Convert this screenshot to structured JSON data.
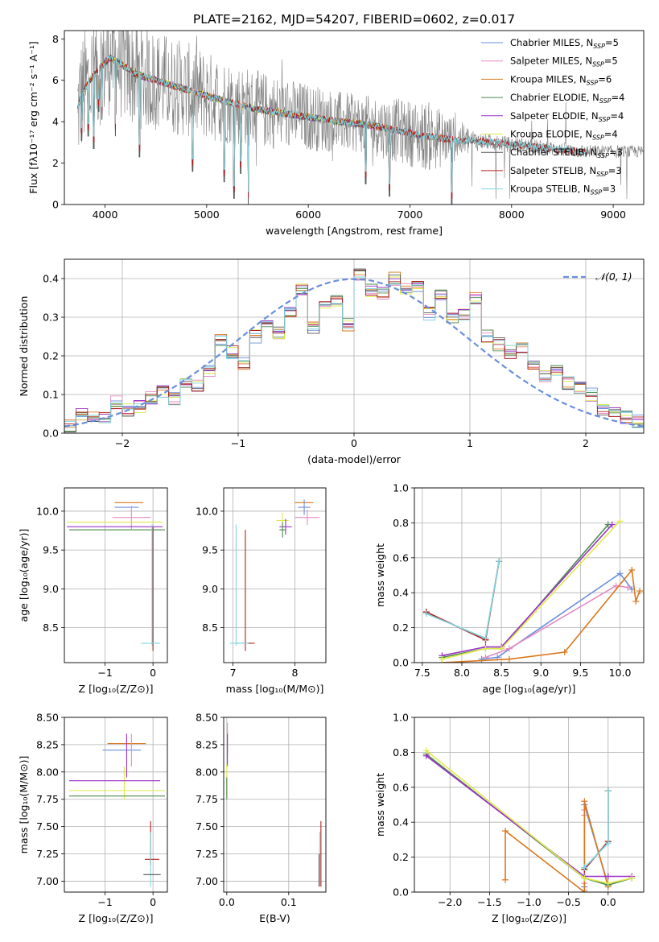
{
  "figure_title": "PLATE=2162, MJD=54207, FIBERID=0602, z=0.017",
  "colors": {
    "Chabrier MILES": "#6a8fdc",
    "Salpeter MILES": "#e78ac3",
    "Kroupa MILES": "#d9771c",
    "Chabrier ELODIE": "#4c8a4c",
    "Salpeter ELODIE": "#9b30c8",
    "Kroupa ELODIE": "#dfe84a",
    "Chabrier STELIB": "#555555",
    "Salpeter STELIB": "#b22020",
    "Kroupa STELIB": "#7fd6e0",
    "data": "#808080",
    "gauss": "#6a8fdc",
    "grid": "#b0b0b0"
  },
  "chart_data": [
    {
      "id": "spectrum",
      "type": "line",
      "title": "PLATE=2162, MJD=54207, FIBERID=0602, z=0.017",
      "xlabel": "wavelength [Angstrom, rest frame]",
      "ylabel": "Flux [fλ10⁻¹⁷ erg cm⁻² s⁻¹ A⁻¹]",
      "xlim": [
        3600,
        9300
      ],
      "ylim": [
        0,
        8.4
      ],
      "xticks": [
        4000,
        5000,
        6000,
        7000,
        8000,
        9000
      ],
      "yticks": [
        0,
        2,
        4,
        6,
        8
      ],
      "grid": false,
      "legend_position": "top-right",
      "legend": [
        {
          "label": "Chabrier MILES, N",
          "sub": "SSP",
          "tail": "=5",
          "series": "Chabrier MILES"
        },
        {
          "label": "Salpeter MILES, N",
          "sub": "SSP",
          "tail": "=5",
          "series": "Salpeter MILES"
        },
        {
          "label": "Kroupa MILES, N",
          "sub": "SSP",
          "tail": "=6",
          "series": "Kroupa MILES"
        },
        {
          "label": "Chabrier ELODIE, N",
          "sub": "SSP",
          "tail": "=4",
          "series": "Chabrier ELODIE"
        },
        {
          "label": "Salpeter ELODIE, N",
          "sub": "SSP",
          "tail": "=4",
          "series": "Salpeter ELODIE"
        },
        {
          "label": "Kroupa ELODIE, N",
          "sub": "SSP",
          "tail": "=4",
          "series": "Kroupa ELODIE"
        },
        {
          "label": "Chabrier STELIB, N",
          "sub": "SSP",
          "tail": "=3",
          "series": "Chabrier STELIB"
        },
        {
          "label": "Salpeter STELIB, N",
          "sub": "SSP",
          "tail": "=3",
          "series": "Salpeter STELIB"
        },
        {
          "label": "Kroupa STELIB, N",
          "sub": "SSP",
          "tail": "=3",
          "series": "Kroupa STELIB"
        }
      ],
      "continuum": [
        [
          3730,
          4.6
        ],
        [
          3760,
          5.2
        ],
        [
          3850,
          6.0
        ],
        [
          3950,
          6.6
        ],
        [
          4050,
          7.1
        ],
        [
          4150,
          6.8
        ],
        [
          4300,
          6.3
        ],
        [
          4500,
          6.0
        ],
        [
          4700,
          5.7
        ],
        [
          4900,
          5.4
        ],
        [
          5100,
          5.1
        ],
        [
          5300,
          4.85
        ],
        [
          5500,
          4.6
        ],
        [
          5700,
          4.45
        ],
        [
          5900,
          4.3
        ],
        [
          6100,
          4.15
        ],
        [
          6300,
          4.0
        ],
        [
          6500,
          3.9
        ],
        [
          6700,
          3.75
        ],
        [
          6900,
          3.55
        ],
        [
          7100,
          3.35
        ],
        [
          7300,
          3.2
        ],
        [
          7500,
          3.1
        ],
        [
          7700,
          3.05
        ],
        [
          7900,
          2.95
        ],
        [
          8200,
          2.8
        ],
        [
          8500,
          2.65
        ],
        [
          8700,
          2.55
        ]
      ],
      "data_noise": [
        [
          3730,
          3.0
        ],
        [
          4500,
          2.5
        ],
        [
          5500,
          1.9
        ],
        [
          6500,
          1.4
        ],
        [
          7200,
          1.7
        ],
        [
          7700,
          0.4
        ],
        [
          9300,
          0.3
        ]
      ],
      "model_dips": [
        [
          3770,
          3.1
        ],
        [
          3835,
          3.3
        ],
        [
          3890,
          2.7
        ],
        [
          3935,
          4.5
        ],
        [
          3970,
          4.1
        ],
        [
          4102,
          3.3
        ],
        [
          4340,
          2.3
        ],
        [
          4861,
          1.6
        ],
        [
          5175,
          1.1
        ],
        [
          5269,
          0.3
        ],
        [
          5335,
          1.5
        ],
        [
          5410,
          0.0
        ],
        [
          6563,
          1.0
        ],
        [
          6800,
          0.4
        ],
        [
          7410,
          0.0
        ]
      ]
    },
    {
      "id": "residuals",
      "type": "line",
      "xlabel": "(data-model)/error",
      "ylabel": "Normed distribution",
      "xlim": [
        -2.5,
        2.5
      ],
      "ylim": [
        0,
        0.45
      ],
      "xticks": [
        -2,
        -1,
        0,
        1,
        2
      ],
      "yticks": [
        0.0,
        0.1,
        0.2,
        0.3,
        0.4
      ],
      "grid": true,
      "legend_position": "top-right",
      "legend": [
        {
          "label": "𝒩(0, 1)",
          "series": "gauss"
        }
      ],
      "bin_edges": [
        -2.5,
        -2.4,
        -2.3,
        -2.2,
        -2.1,
        -2.0,
        -1.9,
        -1.8,
        -1.7,
        -1.6,
        -1.5,
        -1.4,
        -1.3,
        -1.2,
        -1.1,
        -1.0,
        -0.9,
        -0.8,
        -0.7,
        -0.6,
        -0.5,
        -0.4,
        -0.3,
        -0.2,
        -0.1,
        0.0,
        0.1,
        0.2,
        0.3,
        0.4,
        0.5,
        0.6,
        0.7,
        0.8,
        0.9,
        1.0,
        1.1,
        1.2,
        1.3,
        1.4,
        1.5,
        1.6,
        1.7,
        1.8,
        1.9,
        2.0,
        2.1,
        2.2,
        2.3,
        2.4,
        2.5
      ],
      "hist_values": [
        0.02,
        0.05,
        0.04,
        0.04,
        0.08,
        0.06,
        0.07,
        0.09,
        0.11,
        0.09,
        0.13,
        0.12,
        0.16,
        0.24,
        0.21,
        0.18,
        0.25,
        0.28,
        0.26,
        0.31,
        0.37,
        0.27,
        0.34,
        0.34,
        0.28,
        0.41,
        0.37,
        0.36,
        0.4,
        0.37,
        0.38,
        0.31,
        0.36,
        0.3,
        0.31,
        0.35,
        0.25,
        0.23,
        0.21,
        0.22,
        0.18,
        0.15,
        0.16,
        0.13,
        0.12,
        0.1,
        0.06,
        0.05,
        0.04,
        0.03
      ],
      "gaussian": {
        "mu": 0,
        "sigma": 1,
        "label": "𝒩(0, 1)"
      }
    },
    {
      "id": "age-vs-Z",
      "type": "scatter",
      "xlabel": "Z [log₁₀(Z/Z⊙)]",
      "ylabel": "age  [log₁₀(age/yr)]",
      "xlim": [
        -1.85,
        0.3
      ],
      "ylim": [
        8.05,
        10.3
      ],
      "xticks": [
        -1,
        0
      ],
      "yticks": [
        8.5,
        9.0,
        9.5,
        10.0
      ],
      "grid": true,
      "bars": [
        {
          "series": "Chabrier MILES",
          "x": -0.55,
          "xerr": 0.25,
          "y": 10.05,
          "yerr": 0.0
        },
        {
          "series": "Kroupa MILES",
          "x": -0.5,
          "xerr": 0.3,
          "y": 10.11,
          "yerr": 0.0
        },
        {
          "series": "Salpeter MILES",
          "x": -0.45,
          "xerr": 0.4,
          "y": 9.92,
          "yerr": 0.15
        },
        {
          "series": "Kroupa ELODIE",
          "x": -0.8,
          "xerr": 1.0,
          "y": 9.86,
          "yerr": 0.0
        },
        {
          "series": "Salpeter ELODIE",
          "x": -0.8,
          "xerr": 1.0,
          "y": 9.8,
          "yerr": 0.0
        },
        {
          "series": "Chabrier ELODIE",
          "x": -0.75,
          "xerr": 1.0,
          "y": 9.76,
          "yerr": 0.0
        },
        {
          "series": "Kroupa STELIB",
          "x": -0.02,
          "xerr": 0.0,
          "y": 9.05,
          "yerr": 0.78
        },
        {
          "series": "Salpeter STELIB",
          "x": 0.0,
          "xerr": 0.0,
          "y": 9.0,
          "yerr": 0.8
        },
        {
          "series": "Kroupa STELIB",
          "x": -0.05,
          "xerr": 0.2,
          "y": 8.3,
          "yerr": 0.0
        }
      ]
    },
    {
      "id": "age-vs-mass",
      "type": "scatter",
      "xlabel": "mass [log₁₀(M/M⊙)]",
      "ylabel": "",
      "xlim": [
        6.85,
        8.5
      ],
      "ylim": [
        8.05,
        10.3
      ],
      "xticks": [
        7,
        8
      ],
      "yticks": [
        8.5,
        9.0,
        9.5,
        10.0
      ],
      "grid": true,
      "bars": [
        {
          "series": "Kroupa MILES",
          "x": 8.15,
          "xerr": 0.15,
          "y": 10.11,
          "yerr": 0.0
        },
        {
          "series": "Salpeter MILES",
          "x": 8.2,
          "xerr": 0.2,
          "y": 9.92,
          "yerr": 0.1
        },
        {
          "series": "Chabrier MILES",
          "x": 8.15,
          "xerr": 0.1,
          "y": 10.05,
          "yerr": 0.1
        },
        {
          "series": "Kroupa ELODIE",
          "x": 7.8,
          "xerr": 0.1,
          "y": 9.88,
          "yerr": 0.1
        },
        {
          "series": "Salpeter ELODIE",
          "x": 7.85,
          "xerr": 0.1,
          "y": 9.8,
          "yerr": 0.1
        },
        {
          "series": "Chabrier ELODIE",
          "x": 7.8,
          "xerr": 0.05,
          "y": 9.76,
          "yerr": 0.1
        },
        {
          "series": "Salpeter STELIB",
          "x": 7.2,
          "xerr": 0.0,
          "y": 8.98,
          "yerr": 0.78
        },
        {
          "series": "Kroupa STELIB",
          "x": 7.05,
          "xerr": 0.0,
          "y": 9.05,
          "yerr": 0.78
        },
        {
          "series": "Salpeter STELIB",
          "x": 7.2,
          "xerr": 0.15,
          "y": 8.3,
          "yerr": 0.0
        },
        {
          "series": "Kroupa STELIB",
          "x": 7.1,
          "xerr": 0.15,
          "y": 8.3,
          "yerr": 0.0
        }
      ]
    },
    {
      "id": "weight-vs-age",
      "type": "line",
      "xlabel": "age  [log₁₀(age/yr)]",
      "ylabel": "mass weight",
      "xlim": [
        7.4,
        10.3
      ],
      "ylim": [
        0,
        1.0
      ],
      "xticks": [
        7.5,
        8.0,
        8.5,
        9.0,
        9.5,
        10.0
      ],
      "yticks": [
        0.0,
        0.2,
        0.4,
        0.6,
        0.8,
        1.0
      ],
      "grid": true,
      "series": [
        {
          "name": "Chabrier MILES",
          "x": [
            8.25,
            8.45,
            10.0,
            10.15
          ],
          "y": [
            0.02,
            0.03,
            0.51,
            0.42
          ]
        },
        {
          "name": "Salpeter MILES",
          "x": [
            8.3,
            8.6,
            9.95,
            10.1
          ],
          "y": [
            0.03,
            0.08,
            0.44,
            0.43
          ]
        },
        {
          "name": "Kroupa MILES",
          "x": [
            7.75,
            8.6,
            9.3,
            10.15,
            10.2,
            10.25
          ],
          "y": [
            0.0,
            0.02,
            0.06,
            0.53,
            0.35,
            0.41
          ]
        },
        {
          "name": "Chabrier ELODIE",
          "x": [
            7.75,
            8.3,
            8.5,
            9.85
          ],
          "y": [
            0.03,
            0.08,
            0.08,
            0.79
          ]
        },
        {
          "name": "Salpeter ELODIE",
          "x": [
            7.75,
            8.3,
            8.5,
            9.9
          ],
          "y": [
            0.04,
            0.09,
            0.09,
            0.79
          ]
        },
        {
          "name": "Kroupa ELODIE",
          "x": [
            7.75,
            8.3,
            8.5,
            10.0
          ],
          "y": [
            0.02,
            0.08,
            0.08,
            0.81
          ]
        },
        {
          "name": "Chabrier STELIB",
          "x": [
            7.55,
            8.3,
            8.47
          ],
          "y": [
            0.29,
            0.13,
            0.58
          ]
        },
        {
          "name": "Salpeter STELIB",
          "x": [
            7.55,
            8.3,
            8.47
          ],
          "y": [
            0.29,
            0.13,
            0.58
          ]
        },
        {
          "name": "Kroupa STELIB",
          "x": [
            7.55,
            8.3,
            8.47
          ],
          "y": [
            0.28,
            0.14,
            0.58
          ]
        }
      ]
    },
    {
      "id": "mass-vs-Z",
      "type": "scatter",
      "xlabel": "Z [log₁₀(Z/Z⊙)]",
      "ylabel": "mass [log₁₀(M/M⊙)]",
      "xlim": [
        -1.85,
        0.3
      ],
      "ylim": [
        6.9,
        8.5
      ],
      "xticks": [
        -1,
        0
      ],
      "yticks": [
        7.0,
        7.25,
        7.5,
        7.75,
        8.0,
        8.25,
        8.5
      ],
      "grid": true,
      "bars": [
        {
          "series": "Kroupa MILES",
          "x": -0.55,
          "xerr": 0.4,
          "y": 8.26,
          "yerr": 0.0
        },
        {
          "series": "Chabrier MILES",
          "x": -0.65,
          "xerr": 0.4,
          "y": 8.2,
          "yerr": 0.0
        },
        {
          "series": "Salpeter MILES",
          "x": -0.45,
          "xerr": 0.0,
          "y": 8.2,
          "yerr": 0.15
        },
        {
          "series": "Salpeter ELODIE",
          "x": -0.55,
          "xerr": 0.0,
          "y": 8.15,
          "yerr": 0.2
        },
        {
          "series": "Kroupa ELODIE",
          "x": -0.6,
          "xerr": 0.0,
          "y": 7.9,
          "yerr": 0.15
        },
        {
          "series": "Salpeter ELODIE",
          "x": -0.8,
          "xerr": 0.95,
          "y": 7.92,
          "yerr": 0.0
        },
        {
          "series": "Kroupa ELODIE",
          "x": -0.75,
          "xerr": 1.0,
          "y": 7.83,
          "yerr": 0.0
        },
        {
          "series": "Chabrier ELODIE",
          "x": -0.75,
          "xerr": 1.0,
          "y": 7.78,
          "yerr": 0.0
        },
        {
          "series": "Salpeter STELIB",
          "x": -0.05,
          "xerr": 0.0,
          "y": 7.35,
          "yerr": 0.2
        },
        {
          "series": "Salpeter STELIB",
          "x": -0.02,
          "xerr": 0.15,
          "y": 7.2,
          "yerr": 0.0
        },
        {
          "series": "Kroupa STELIB",
          "x": -0.05,
          "xerr": 0.0,
          "y": 7.2,
          "yerr": 0.25
        },
        {
          "series": "Chabrier STELIB",
          "x": -0.02,
          "xerr": 0.18,
          "y": 7.06,
          "yerr": 0.0
        }
      ]
    },
    {
      "id": "mass-vs-EBV",
      "type": "scatter",
      "xlabel": "E(B-V)",
      "ylabel": "",
      "xlim": [
        -0.005,
        0.16
      ],
      "ylim": [
        6.9,
        8.5
      ],
      "xticks": [
        0.0,
        0.1
      ],
      "yticks": [
        7.0,
        7.25,
        7.5,
        7.75,
        8.0,
        8.25,
        8.5
      ],
      "grid": true,
      "bars": [
        {
          "series": "Salpeter MILES",
          "x": 0.001,
          "xerr": 0.0,
          "y": 8.3,
          "yerr": 0.15
        },
        {
          "series": "Salpeter ELODIE",
          "x": 0.001,
          "xerr": 0.0,
          "y": 8.2,
          "yerr": 0.15
        },
        {
          "series": "Kroupa ELODIE",
          "x": 0.0,
          "xerr": 0.0,
          "y": 7.92,
          "yerr": 0.15
        },
        {
          "series": "Chabrier ELODIE",
          "x": 0.0,
          "xerr": 0.0,
          "y": 7.85,
          "yerr": 0.1
        },
        {
          "series": "Salpeter STELIB",
          "x": 0.152,
          "xerr": 0.0,
          "y": 7.25,
          "yerr": 0.3
        },
        {
          "series": "Kroupa STELIB",
          "x": 0.15,
          "xerr": 0.0,
          "y": 7.2,
          "yerr": 0.25
        },
        {
          "series": "Chabrier STELIB",
          "x": 0.149,
          "xerr": 0.0,
          "y": 7.1,
          "yerr": 0.15
        }
      ]
    },
    {
      "id": "weight-vs-Z",
      "type": "line",
      "xlabel": "Z [log₁₀(Z/Z⊙)]",
      "ylabel": "mass weight",
      "xlim": [
        -2.45,
        0.45
      ],
      "ylim": [
        0,
        1.0
      ],
      "xticks": [
        -2.0,
        -1.5,
        -1.0,
        -0.5,
        0.0
      ],
      "yticks": [
        0.0,
        0.2,
        0.4,
        0.6,
        0.8,
        1.0
      ],
      "grid": true,
      "series": [
        {
          "name": "Chabrier MILES",
          "x": [
            -0.3,
            -0.3,
            -0.3,
            0.0
          ],
          "y": [
            0.0,
            0.03,
            0.5,
            0.04
          ]
        },
        {
          "name": "Salpeter MILES",
          "x": [
            -0.3,
            -0.3,
            -0.3,
            -0.3
          ],
          "y": [
            0.01,
            0.05,
            0.44,
            0.47
          ]
        },
        {
          "name": "Kroupa MILES",
          "x": [
            -1.3,
            -1.3,
            -0.3,
            -0.3,
            0.0
          ],
          "y": [
            0.07,
            0.35,
            0.0,
            0.52,
            0.03
          ]
        },
        {
          "name": "Chabrier ELODIE",
          "x": [
            -2.3,
            -0.3,
            0.0,
            0.3
          ],
          "y": [
            0.79,
            0.08,
            0.04,
            0.08
          ]
        },
        {
          "name": "Salpeter ELODIE",
          "x": [
            -2.3,
            -0.3,
            0.0,
            0.3
          ],
          "y": [
            0.78,
            0.09,
            0.09,
            0.09
          ]
        },
        {
          "name": "Kroupa ELODIE",
          "x": [
            -2.3,
            -0.3,
            0.0,
            0.3
          ],
          "y": [
            0.81,
            0.08,
            0.05,
            0.08
          ]
        },
        {
          "name": "Chabrier STELIB",
          "x": [
            -0.3,
            0.0,
            0.0
          ],
          "y": [
            0.13,
            0.29,
            0.58
          ]
        },
        {
          "name": "Salpeter STELIB",
          "x": [
            -0.3,
            0.0,
            0.0
          ],
          "y": [
            0.13,
            0.29,
            0.58
          ]
        },
        {
          "name": "Kroupa STELIB",
          "x": [
            -0.3,
            0.0,
            0.0
          ],
          "y": [
            0.14,
            0.28,
            0.58
          ]
        }
      ]
    }
  ]
}
